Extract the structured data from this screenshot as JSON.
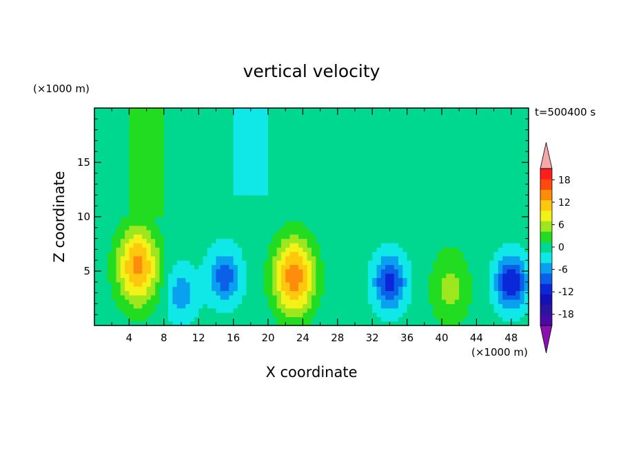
{
  "chart_data": {
    "type": "heatmap",
    "title": "vertical velocity",
    "xlabel": "X coordinate",
    "ylabel": "Z coordinate",
    "x_unit": "(×1000 m)",
    "y_unit": "(×1000 m)",
    "time_label": "t=500400 s",
    "xlim": [
      0,
      50
    ],
    "ylim": [
      0,
      20
    ],
    "x_ticks": [
      4,
      8,
      12,
      16,
      20,
      24,
      28,
      32,
      36,
      40,
      44,
      48
    ],
    "y_ticks": [
      5,
      10,
      15
    ],
    "colorbar": {
      "levels": [
        -21,
        -18,
        -15,
        -12,
        -9,
        -6,
        -3,
        0,
        3,
        6,
        9,
        12,
        15,
        18,
        21
      ],
      "tick_labels": [
        "18",
        "12",
        "6",
        "0",
        "-6",
        "-12",
        "-18"
      ],
      "tick_values": [
        18,
        12,
        6,
        0,
        -6,
        -12,
        -18
      ],
      "colors": [
        "#4a0aa8",
        "#2a14a0",
        "#1410b8",
        "#0a28d8",
        "#0a60e6",
        "#0aa0f0",
        "#10e8e8",
        "#00d890",
        "#22dc22",
        "#9ee61e",
        "#f2f218",
        "#ffc80e",
        "#ff8c0a",
        "#ff4a0e",
        "#ff1e1e"
      ],
      "over_color": "#f4a8a8",
      "under_color": "#8a10b0"
    },
    "features": [
      {
        "kind": "updraft",
        "x": 5,
        "z": 5.5,
        "peak": 15
      },
      {
        "kind": "updraft",
        "x": 23,
        "z": 4.5,
        "peak": 16
      },
      {
        "kind": "updraft",
        "x": 41,
        "z": 3.5,
        "peak": 6
      },
      {
        "kind": "downdraft",
        "x": 15,
        "z": 4.5,
        "peak": -9
      },
      {
        "kind": "downdraft",
        "x": 34,
        "z": 4,
        "peak": -12
      },
      {
        "kind": "downdraft",
        "x": 48,
        "z": 4,
        "peak": -13
      },
      {
        "kind": "downdraft",
        "x": 10,
        "z": 3,
        "peak": -6
      }
    ]
  }
}
